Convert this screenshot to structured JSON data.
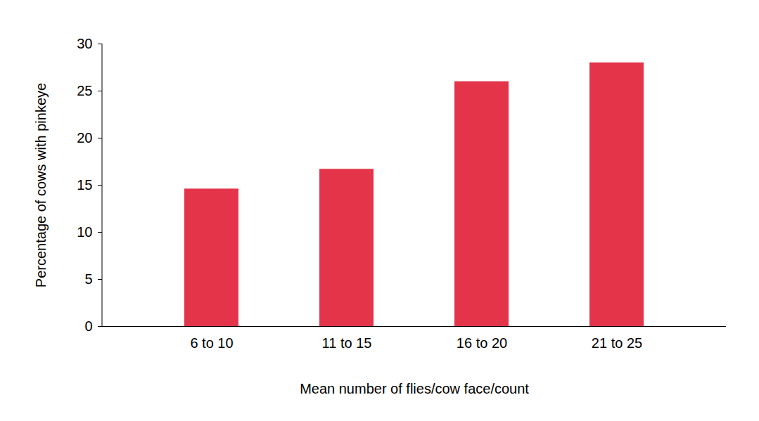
{
  "chart_data": {
    "type": "bar",
    "xlabel": "Mean number of flies/cow face/count",
    "ylabel": "Percentage of cows with pinkeye",
    "categories": [
      "6 to 10",
      "11 to 15",
      "16 to 20",
      "21 to 25"
    ],
    "values": [
      14.6,
      16.7,
      26,
      28
    ],
    "color": "#e3344a",
    "ylim": [
      0,
      30
    ],
    "yticks": [
      0,
      5,
      10,
      15,
      20,
      25,
      30
    ],
    "grid": false
  }
}
